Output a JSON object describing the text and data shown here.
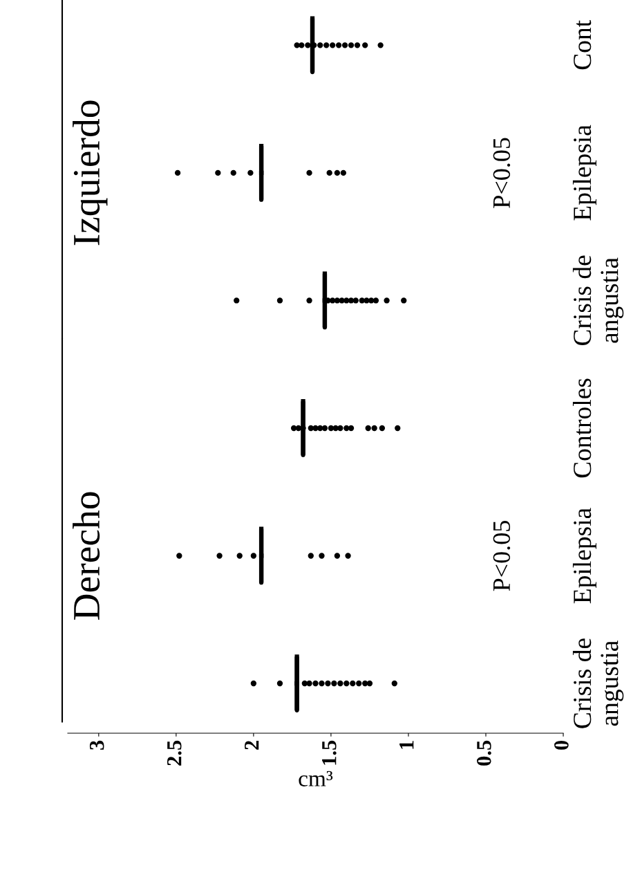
{
  "chart_data": {
    "type": "scatter",
    "orientation": "horizontal",
    "xlabel": "cm³",
    "categories": [
      "Cont",
      "Epilepsia",
      "Crisis de\nangustia",
      "Controles",
      "Epilepsia",
      "Crisis de\nangustia"
    ],
    "xlim": [
      3.2,
      0
    ],
    "xticks": [
      0,
      0.5,
      1,
      1.5,
      2,
      2.5,
      3
    ],
    "series": [
      {
        "color": "#000000",
        "marker": "circle",
        "values": [
          1.72,
          2.49,
          2.11,
          1.74,
          2.48,
          2.0
        ]
      },
      {
        "color": "#000000",
        "marker": "circle",
        "values": [
          1.69,
          2.23,
          1.83,
          1.71,
          2.22,
          1.83
        ]
      },
      {
        "color": "#000000",
        "marker": "circle",
        "values": [
          1.65,
          2.13,
          1.64,
          1.68,
          2.09,
          1.67
        ]
      },
      {
        "color": "#000000",
        "marker": "circle",
        "values": [
          1.61,
          2.02,
          1.52,
          1.63,
          2.0,
          1.64
        ]
      },
      {
        "color": "#000000",
        "marker": "circle",
        "values": [
          1.57,
          1.64,
          1.49,
          1.6,
          1.63,
          1.6
        ]
      },
      {
        "color": "#000000",
        "marker": "circle",
        "values": [
          1.53,
          1.51,
          1.46,
          1.57,
          1.56,
          1.56
        ]
      },
      {
        "color": "#000000",
        "marker": "circle",
        "values": [
          1.49,
          1.46,
          1.43,
          1.54,
          1.46,
          1.52
        ]
      },
      {
        "color": "#000000",
        "marker": "circle",
        "values": [
          1.45,
          1.42,
          1.4,
          1.5,
          1.39,
          1.48
        ]
      },
      {
        "color": "#000000",
        "marker": "circle",
        "values": [
          1.41,
          null,
          1.37,
          1.47,
          null,
          1.44
        ]
      },
      {
        "color": "#000000",
        "marker": "circle",
        "values": [
          1.37,
          null,
          1.34,
          1.44,
          null,
          1.4
        ]
      },
      {
        "color": "#000000",
        "marker": "circle",
        "values": [
          1.33,
          null,
          1.3,
          1.4,
          null,
          1.36
        ]
      },
      {
        "color": "#000000",
        "marker": "circle",
        "values": [
          1.28,
          null,
          1.27,
          1.37,
          null,
          1.32
        ]
      },
      {
        "color": "#000000",
        "marker": "circle",
        "values": [
          1.18,
          null,
          1.24,
          1.26,
          null,
          1.28
        ]
      },
      {
        "color": "#000000",
        "marker": "circle",
        "values": [
          null,
          null,
          1.21,
          1.22,
          null,
          1.25
        ]
      },
      {
        "color": "#000000",
        "marker": "circle",
        "values": [
          null,
          null,
          1.14,
          1.17,
          null,
          1.09
        ]
      },
      {
        "color": "#000000",
        "marker": "circle",
        "values": [
          null,
          null,
          1.03,
          1.07,
          null,
          null
        ]
      },
      {
        "type": "box",
        "color": "#000000",
        "boxes": [
          {
            "low": 1.62,
            "q1": 1.62,
            "median": 1.62,
            "q3": 1.62,
            "high": 1.62
          },
          {
            "low": 1.95,
            "q1": 1.95,
            "median": 1.95,
            "q3": 1.95,
            "high": 1.95
          },
          {
            "low": 1.54,
            "q1": 1.54,
            "median": 1.54,
            "q3": 1.54,
            "high": 1.54
          },
          {
            "low": 1.68,
            "q1": 1.68,
            "median": 1.68,
            "q3": 1.68,
            "high": 1.68
          },
          {
            "low": 1.95,
            "q1": 1.95,
            "median": 1.95,
            "q3": 1.95,
            "high": 1.95
          },
          {
            "low": 1.72,
            "q1": 1.72,
            "median": 1.72,
            "q3": 1.72,
            "high": 1.72
          }
        ]
      }
    ],
    "annotations": [
      "Izquierdo",
      "Derecho",
      "P<0.05",
      "P<0.05"
    ],
    "grid": false,
    "legend": false
  }
}
